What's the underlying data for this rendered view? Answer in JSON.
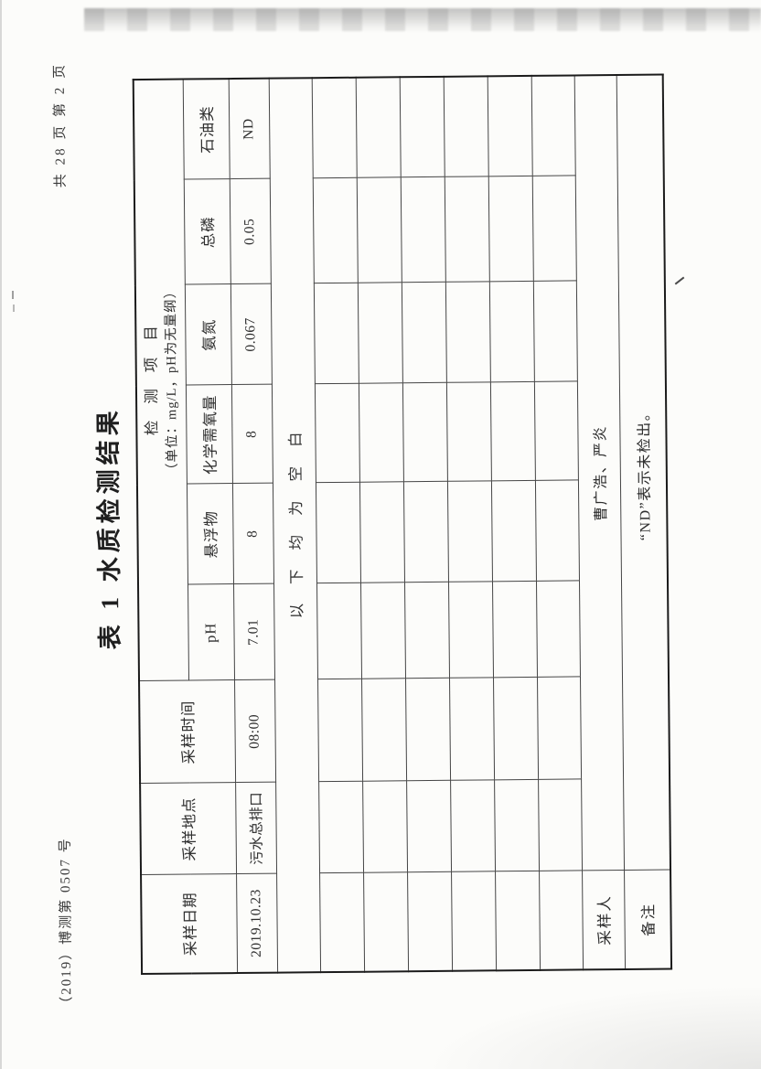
{
  "page": {
    "doc_number": "（2019）博测第 0507 号",
    "page_info": "共 28 页  第 2 页",
    "title": "表 1  水质检测结果"
  },
  "table": {
    "project_header": "检测项目",
    "project_header_unit": "（单位：mg/L，pH为无量纲）",
    "columns": [
      "采样日期",
      "采样地点",
      "采样时间",
      "pH",
      "悬浮物",
      "化学需氧量",
      "氨氮",
      "总磷",
      "石油类"
    ],
    "data_row": [
      "2019.10.23",
      "污水总排口",
      "08:00",
      "7.01",
      "8",
      "8",
      "0.067",
      "0.05",
      "ND"
    ],
    "blank_note": "以下均为空白",
    "empty_row_count": 6,
    "sampler": {
      "label": "采样人",
      "value": "曹广浩、严炎"
    },
    "remark": {
      "label": "备注",
      "value": "“ND”表示未检出。"
    }
  },
  "colors": {
    "paper": "#fcfcfa",
    "ink": "#2e2e2e",
    "grid_line": "#454545",
    "outer_border": "#1b1b1b"
  }
}
